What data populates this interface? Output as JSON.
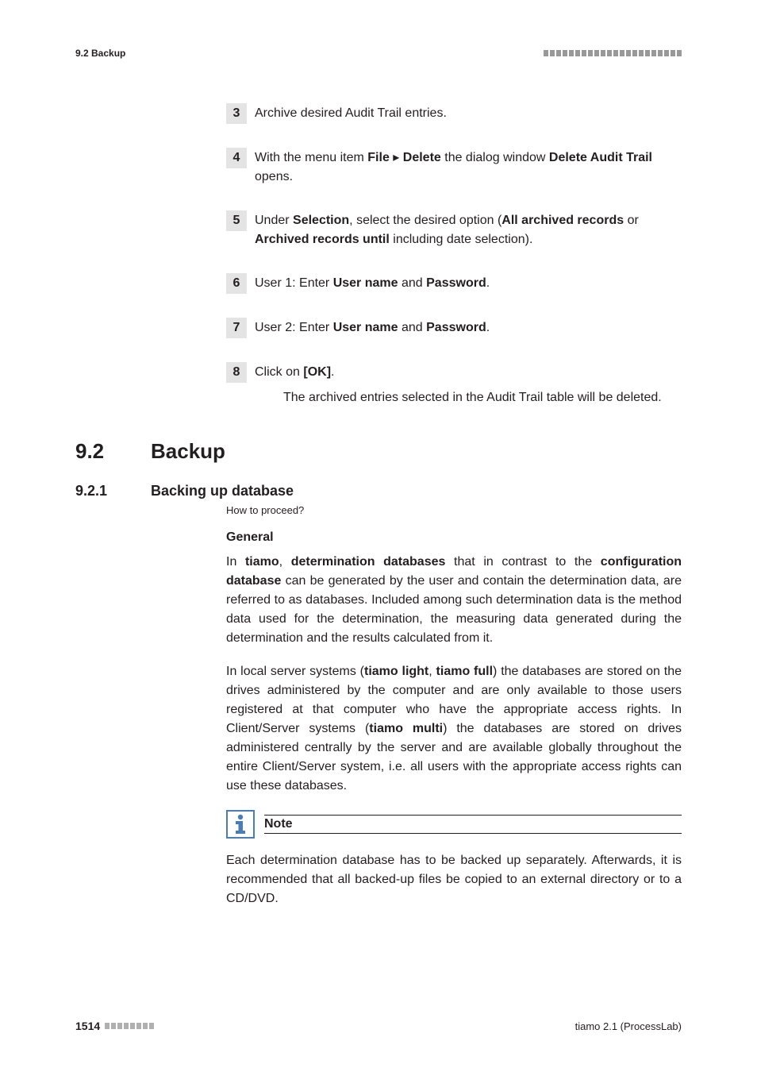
{
  "header": {
    "breadcrumb": "9.2 Backup",
    "bar_count": 22,
    "bar_color": "#999999"
  },
  "steps": [
    {
      "number": "3",
      "text": "Archive desired Audit Trail entries."
    },
    {
      "number": "4",
      "html": "With the menu item <b>File</b> ▸ <b>Delete</b> the dialog window <b>Delete Audit Trail</b> opens."
    },
    {
      "number": "5",
      "html": "Under <b>Selection</b>, select the desired option (<b>All archived records</b> or <b>Archived records until</b> including date selection)."
    },
    {
      "number": "6",
      "html": "User 1: Enter <b>User name</b> and <b>Password</b>."
    },
    {
      "number": "7",
      "html": "User 2: Enter <b>User name</b> and <b>Password</b>."
    },
    {
      "number": "8",
      "html": "Click on <b>[OK]</b>.",
      "indent": "The archived entries selected in the Audit Trail table will be deleted."
    }
  ],
  "section": {
    "number": "9.2",
    "title": "Backup"
  },
  "subsection": {
    "number": "9.2.1",
    "title": "Backing up database",
    "how_to": "How to proceed?"
  },
  "general_label": "General",
  "paragraphs": [
    "In <b>tiamo</b>, <b>determination databases</b> that in contrast to the <b>configuration database</b> can be generated by the user and contain the determination data, are referred to as databases. Included among such determination data is the method data used for the determination, the measuring data generated during the determination and the results calculated from it.",
    "In local server systems (<b>tiamo light</b>, <b>tiamo full</b>) the databases are stored on the drives administered by the computer and are only available to those users registered at that computer who have the appropriate access rights. In Client/Server systems (<b>tiamo multi</b>) the databases are stored on drives administered centrally by the server and are available globally throughout the entire Client/Server system, i.e. all users with the appropriate access rights can use these databases."
  ],
  "note": {
    "label": "Note",
    "text": "Each determination database has to be backed up separately. Afterwards, it is recommended that all backed-up files be copied to an external directory or to a CD/DVD.",
    "icon_color": "#4a7cb5"
  },
  "footer": {
    "page_number": "1514",
    "bar_count": 8,
    "bar_color": "#b0b0b0",
    "product": "tiamo 2.1 (ProcessLab)"
  },
  "colors": {
    "text": "#231f20",
    "step_bg": "#e4e4e4",
    "background": "#ffffff"
  },
  "typography": {
    "body_fontsize": 16,
    "section_fontsize": 26,
    "subsection_fontsize": 18,
    "breadcrumb_fontsize": 12,
    "footer_fontsize": 13
  }
}
